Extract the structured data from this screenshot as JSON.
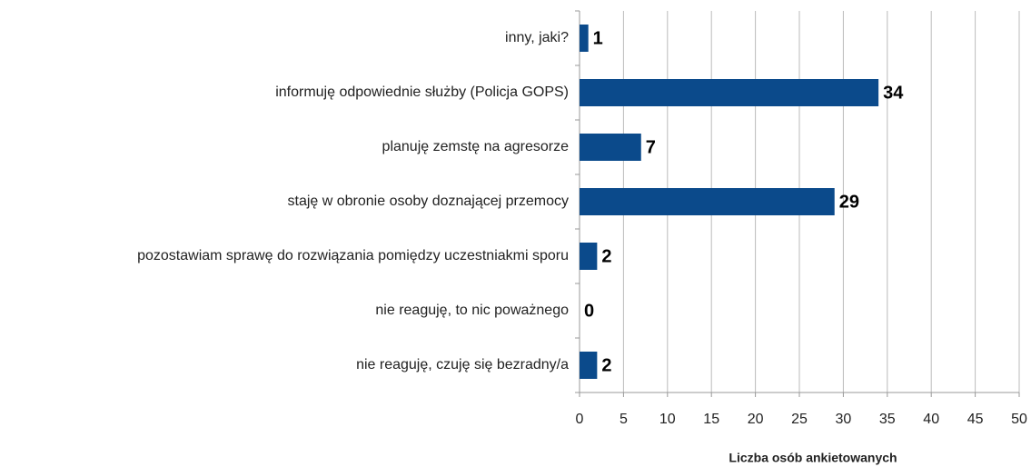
{
  "chart_data": {
    "type": "barh",
    "xlabel": "Liczba osób ankietowanych",
    "categories": [
      "inny, jaki?",
      "informuję odpowiednie służby (Policja GOPS)",
      "planuję zemstę na agresorze",
      "staję w obronie osoby doznającej przemocy",
      "pozostawiam sprawę do rozwiązania pomiędzy uczestniakmi sporu",
      "nie reaguję, to nic poważnego",
      "nie reaguję, czuję się bezradny/a"
    ],
    "values": [
      1,
      34,
      7,
      29,
      2,
      0,
      2
    ],
    "color": "#0b4a8b",
    "xlim": [
      0,
      50
    ],
    "xticks": [
      0,
      5,
      10,
      15,
      20,
      25,
      30,
      35,
      40,
      45,
      50
    ],
    "grid": true
  }
}
